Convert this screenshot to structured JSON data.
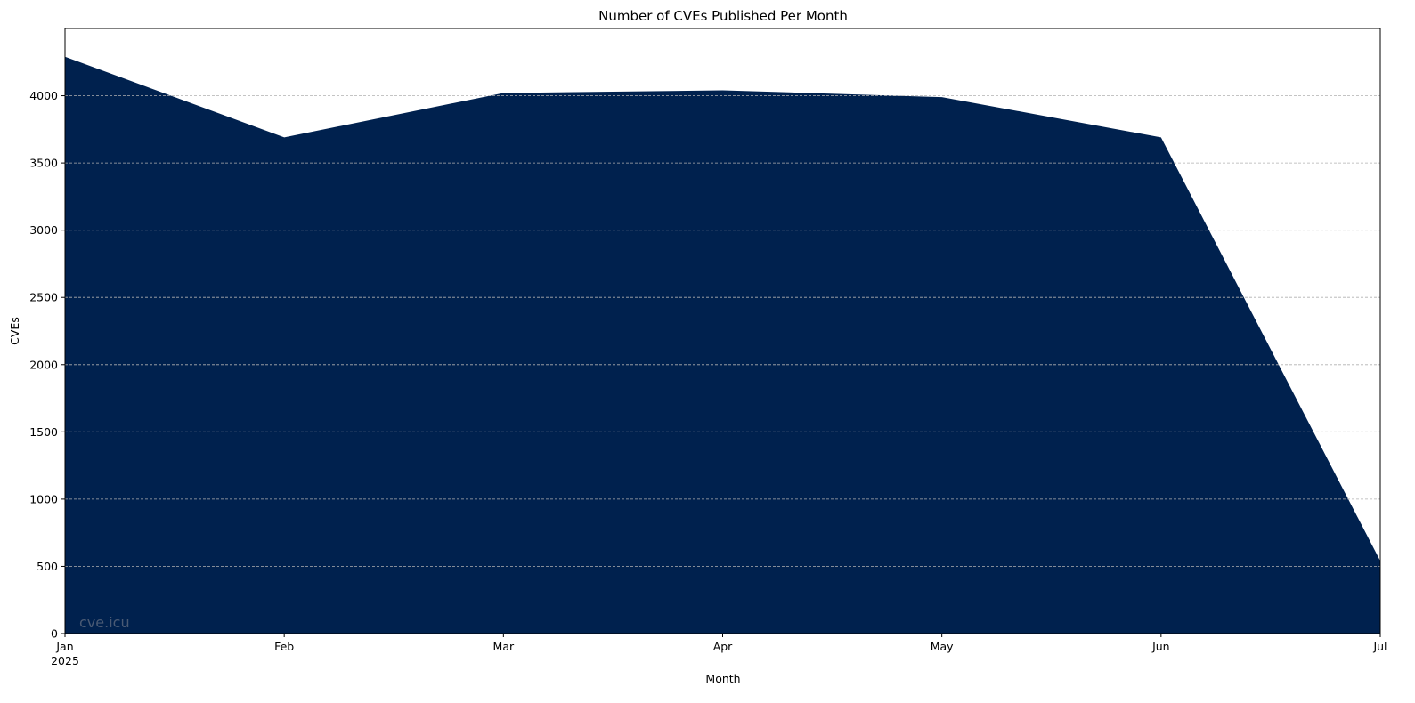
{
  "chart_data": {
    "type": "area",
    "title": "Number of CVEs Published Per Month",
    "xlabel": "Month",
    "ylabel": "CVEs",
    "x": [
      "2025-01",
      "2025-02",
      "2025-03",
      "2025-04",
      "2025-05",
      "2025-06",
      "2025-07"
    ],
    "x_tick_labels": [
      "Jan",
      "Feb",
      "Mar",
      "Apr",
      "May",
      "Jun",
      "Jul"
    ],
    "x_tick_sublabel": "2025",
    "values": [
      4290,
      3690,
      4020,
      4040,
      3990,
      3690,
      540
    ],
    "ylim": [
      0,
      4500
    ],
    "y_ticks": [
      0,
      500,
      1000,
      1500,
      2000,
      2500,
      3000,
      3500,
      4000
    ],
    "grid": "y-dashed",
    "fill_color": "#00214e",
    "grid_color": "#b0b0b0",
    "watermark": "cve.icu",
    "watermark_color": "#4a5a74"
  }
}
